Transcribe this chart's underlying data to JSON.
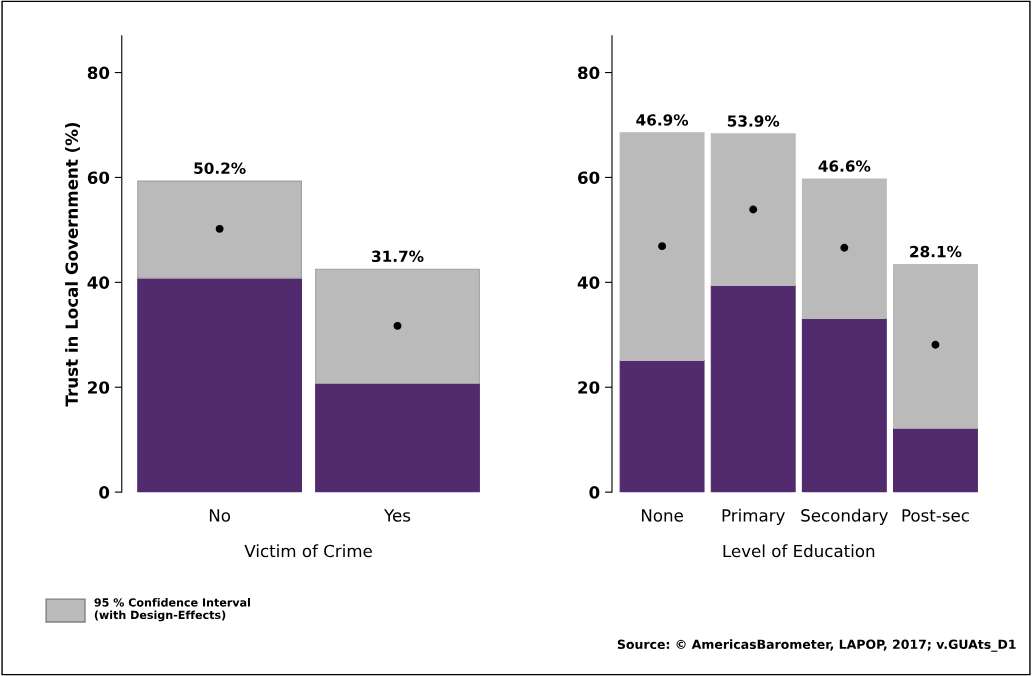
{
  "chart_data": [
    {
      "type": "bar",
      "stacked": true,
      "ylabel": "Trust in Local Government (%)",
      "xlabel": "Victim of Crime",
      "categories": [
        "No",
        "Yes"
      ],
      "ylim": [
        0,
        87
      ],
      "yticks": [
        0,
        20,
        40,
        60,
        80
      ],
      "grid": false,
      "legend": "bottom left",
      "annotations": [
        {
          "text": "50.2%",
          "x": "No",
          "y": 59.3
        },
        {
          "text": "31.7%",
          "x": "Yes",
          "y": 42.5
        }
      ],
      "series": [
        {
          "color": "#522a6e",
          "values": [
            40.8,
            20.7
          ]
        },
        {
          "name": "95 % Confidence Interval\n(with Design-Effects)",
          "color": "#bababa",
          "values": [
            18.5,
            21.8
          ]
        },
        {
          "type": "scatter",
          "color": "#000000",
          "values": [
            50.2,
            31.7
          ]
        }
      ]
    },
    {
      "type": "bar",
      "stacked": true,
      "xlabel": "Level of Education",
      "categories": [
        "None",
        "Primary",
        "Secondary",
        "Post-sec"
      ],
      "ylim": [
        0,
        87
      ],
      "yticks": [
        0,
        20,
        40,
        60,
        80
      ],
      "grid": false,
      "annotations": [
        {
          "text": "46.9%",
          "x": "None",
          "y": 68.5
        },
        {
          "text": "53.9%",
          "x": "Primary",
          "y": 68.3
        },
        {
          "text": "46.6%",
          "x": "Secondary",
          "y": 59.7
        },
        {
          "text": "28.1%",
          "x": "Post-sec",
          "y": 43.4
        },
        "Source: © AmericasBarometer, LAPOP, 2017; v.GUAts_D1"
      ],
      "series": [
        {
          "color": "#522a6e",
          "values": [
            25.1,
            39.4,
            33.1,
            12.2
          ]
        },
        {
          "color": "#bababa",
          "values": [
            43.4,
            28.9,
            26.6,
            31.2
          ]
        },
        {
          "type": "scatter",
          "color": "#000000",
          "values": [
            46.9,
            53.9,
            46.6,
            28.1
          ]
        }
      ]
    }
  ]
}
